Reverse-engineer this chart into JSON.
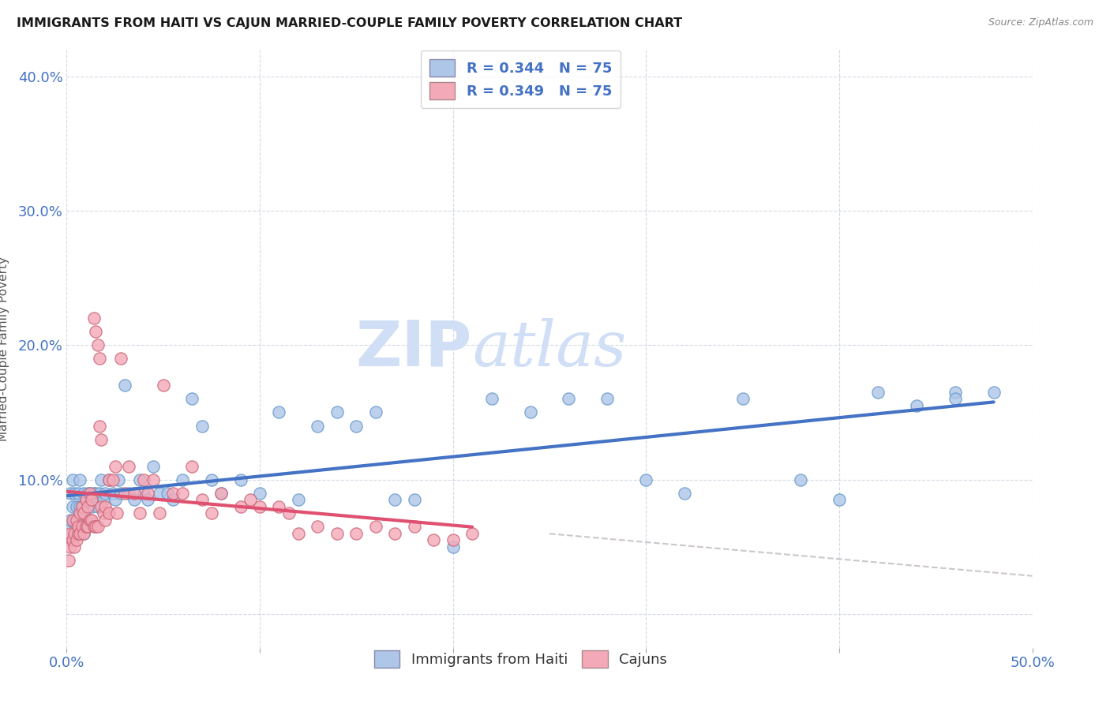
{
  "title": "IMMIGRANTS FROM HAITI VS CAJUN MARRIED-COUPLE FAMILY POVERTY CORRELATION CHART",
  "source": "Source: ZipAtlas.com",
  "ylabel": "Married-Couple Family Poverty",
  "xlim": [
    0,
    0.5
  ],
  "ylim": [
    -0.025,
    0.42
  ],
  "haiti_R": "0.344",
  "haiti_N": "75",
  "cajun_R": "0.349",
  "cajun_N": "75",
  "haiti_color": "#aec6e8",
  "cajun_color": "#f4a9b8",
  "haiti_line_color": "#4472c4",
  "cajun_line_color": "#e05070",
  "haiti_edge_color": "#6699cc",
  "cajun_edge_color": "#cc6677",
  "watermark_color": "#d0dff5",
  "haiti_x": [
    0.001,
    0.002,
    0.002,
    0.003,
    0.003,
    0.004,
    0.004,
    0.005,
    0.005,
    0.006,
    0.006,
    0.007,
    0.007,
    0.008,
    0.008,
    0.009,
    0.009,
    0.01,
    0.01,
    0.011,
    0.011,
    0.012,
    0.013,
    0.014,
    0.015,
    0.016,
    0.017,
    0.018,
    0.019,
    0.02,
    0.022,
    0.024,
    0.025,
    0.027,
    0.028,
    0.03,
    0.032,
    0.035,
    0.038,
    0.04,
    0.042,
    0.045,
    0.048,
    0.052,
    0.055,
    0.06,
    0.065,
    0.07,
    0.075,
    0.08,
    0.09,
    0.1,
    0.11,
    0.12,
    0.13,
    0.14,
    0.15,
    0.16,
    0.17,
    0.18,
    0.2,
    0.22,
    0.24,
    0.26,
    0.28,
    0.3,
    0.32,
    0.35,
    0.38,
    0.4,
    0.42,
    0.44,
    0.46,
    0.46,
    0.48
  ],
  "haiti_y": [
    0.065,
    0.07,
    0.09,
    0.08,
    0.1,
    0.07,
    0.09,
    0.065,
    0.08,
    0.07,
    0.09,
    0.08,
    0.1,
    0.07,
    0.08,
    0.09,
    0.06,
    0.085,
    0.07,
    0.09,
    0.08,
    0.09,
    0.08,
    0.09,
    0.09,
    0.08,
    0.09,
    0.1,
    0.085,
    0.09,
    0.1,
    0.09,
    0.085,
    0.1,
    0.09,
    0.17,
    0.09,
    0.085,
    0.1,
    0.09,
    0.085,
    0.11,
    0.09,
    0.09,
    0.085,
    0.1,
    0.16,
    0.14,
    0.1,
    0.09,
    0.1,
    0.09,
    0.15,
    0.085,
    0.14,
    0.15,
    0.14,
    0.15,
    0.085,
    0.085,
    0.05,
    0.16,
    0.15,
    0.16,
    0.16,
    0.1,
    0.09,
    0.16,
    0.1,
    0.085,
    0.165,
    0.155,
    0.165,
    0.16,
    0.165
  ],
  "cajun_x": [
    0.001,
    0.001,
    0.002,
    0.002,
    0.003,
    0.003,
    0.004,
    0.004,
    0.005,
    0.005,
    0.006,
    0.006,
    0.007,
    0.007,
    0.008,
    0.008,
    0.009,
    0.009,
    0.01,
    0.01,
    0.011,
    0.011,
    0.012,
    0.012,
    0.013,
    0.013,
    0.014,
    0.014,
    0.015,
    0.015,
    0.016,
    0.016,
    0.017,
    0.017,
    0.018,
    0.018,
    0.019,
    0.02,
    0.02,
    0.022,
    0.022,
    0.024,
    0.025,
    0.026,
    0.028,
    0.03,
    0.032,
    0.035,
    0.038,
    0.04,
    0.042,
    0.045,
    0.048,
    0.05,
    0.055,
    0.06,
    0.065,
    0.07,
    0.075,
    0.08,
    0.09,
    0.095,
    0.1,
    0.11,
    0.115,
    0.12,
    0.13,
    0.14,
    0.15,
    0.16,
    0.17,
    0.18,
    0.19,
    0.2,
    0.21
  ],
  "cajun_y": [
    0.04,
    0.055,
    0.06,
    0.05,
    0.055,
    0.07,
    0.06,
    0.05,
    0.07,
    0.055,
    0.06,
    0.065,
    0.075,
    0.06,
    0.08,
    0.065,
    0.075,
    0.06,
    0.085,
    0.065,
    0.08,
    0.065,
    0.09,
    0.07,
    0.085,
    0.07,
    0.22,
    0.065,
    0.21,
    0.065,
    0.2,
    0.065,
    0.19,
    0.14,
    0.13,
    0.08,
    0.075,
    0.08,
    0.07,
    0.1,
    0.075,
    0.1,
    0.11,
    0.075,
    0.19,
    0.09,
    0.11,
    0.09,
    0.075,
    0.1,
    0.09,
    0.1,
    0.075,
    0.17,
    0.09,
    0.09,
    0.11,
    0.085,
    0.075,
    0.09,
    0.08,
    0.085,
    0.08,
    0.08,
    0.075,
    0.06,
    0.065,
    0.06,
    0.06,
    0.065,
    0.06,
    0.065,
    0.055,
    0.055,
    0.06
  ]
}
